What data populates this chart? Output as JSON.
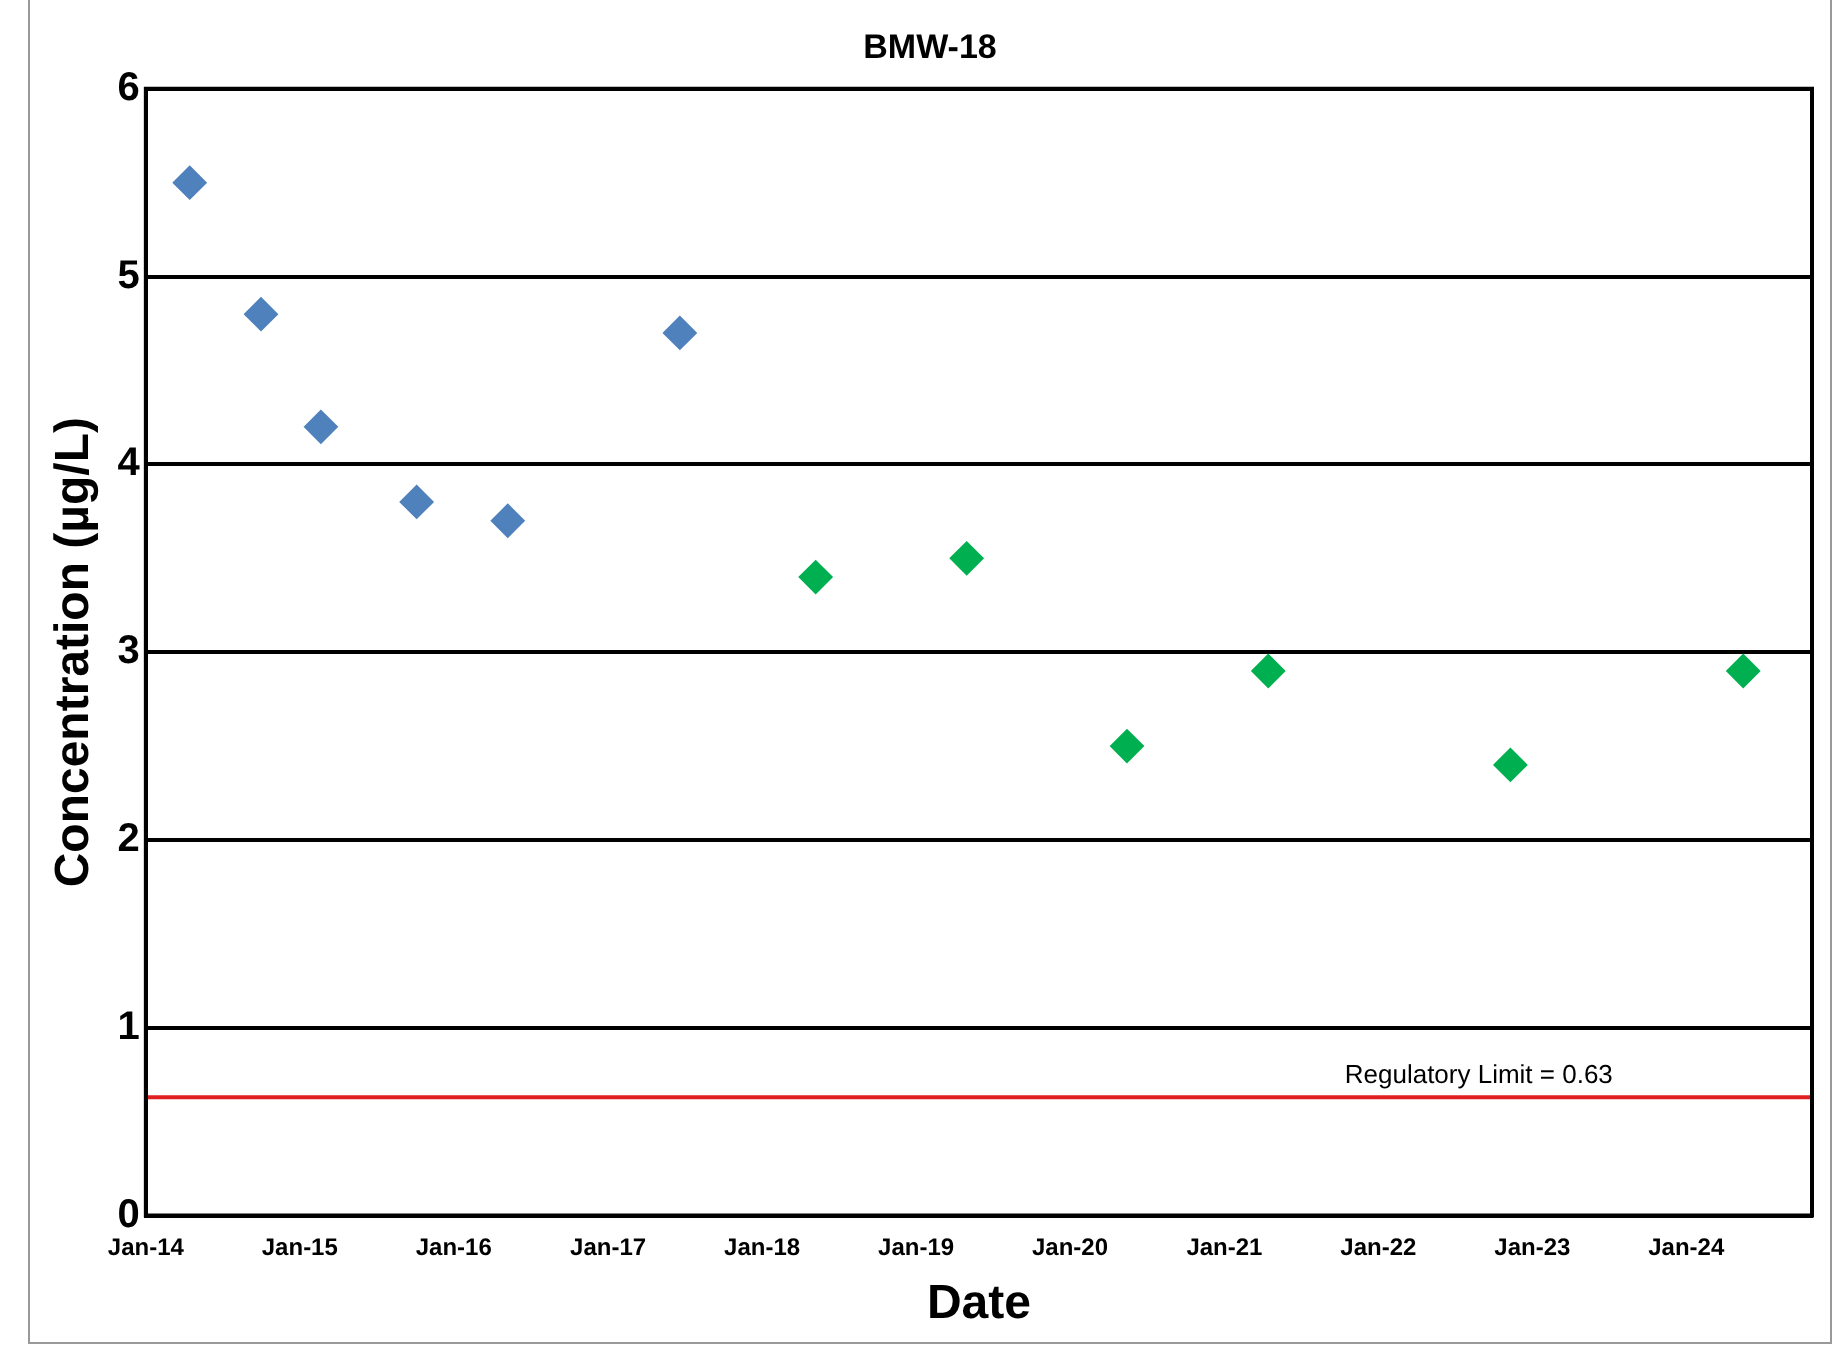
{
  "chart_data": {
    "type": "scatter",
    "title": "BMW-18",
    "xlabel": "Date",
    "ylabel": "Concentration (µg/L)",
    "series": [
      {
        "color": "#4f81bd",
        "x": [
          "2014-04-15",
          "2014-10-01",
          "2015-02-20",
          "2015-10-05",
          "2016-05-08",
          "2017-06-20"
        ],
        "values": [
          5.5,
          4.8,
          4.2,
          3.8,
          3.7,
          4.7
        ]
      },
      {
        "color": "#00b050",
        "x": [
          "2018-05-08",
          "2019-05-01",
          "2020-05-15",
          "2021-04-15",
          "2022-11-10",
          "2024-05-15"
        ],
        "values": [
          3.4,
          3.5,
          2.5,
          2.9,
          2.4,
          2.9
        ]
      }
    ],
    "xlim": [
      "2014-01-01",
      "2024-10-25"
    ],
    "xticks": [
      {
        "value": "2014-01",
        "label": "Jan-14"
      },
      {
        "value": "2015-01",
        "label": "Jan-15"
      },
      {
        "value": "2016-01",
        "label": "Jan-16"
      },
      {
        "value": "2017-01",
        "label": "Jan-17"
      },
      {
        "value": "2018-01",
        "label": "Jan-18"
      },
      {
        "value": "2019-01",
        "label": "Jan-19"
      },
      {
        "value": "2020-01",
        "label": "Jan-20"
      },
      {
        "value": "2021-01",
        "label": "Jan-21"
      },
      {
        "value": "2022-01",
        "label": "Jan-22"
      },
      {
        "value": "2023-01",
        "label": "Jan-23"
      },
      {
        "value": "2024-01",
        "label": "Jan-24"
      }
    ],
    "ylim": [
      0,
      6
    ],
    "yticks": [
      0,
      1,
      2,
      3,
      4,
      5,
      6
    ],
    "grid": "y",
    "marker": "diamond",
    "legend": false,
    "ref_lines": [
      {
        "axis": "y",
        "value": 0.63,
        "label": "Regulatory Limit = 0.63",
        "color": "#e02020"
      }
    ]
  }
}
